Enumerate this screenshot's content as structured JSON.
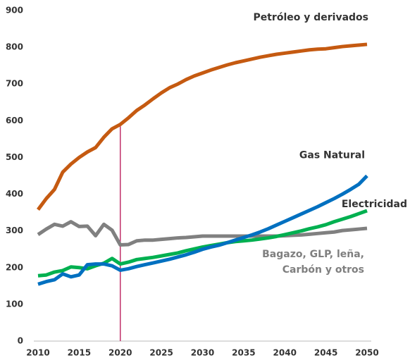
{
  "chart_data": {
    "type": "line",
    "x": [
      2010,
      2011,
      2012,
      2013,
      2014,
      2015,
      2016,
      2017,
      2018,
      2019,
      2020,
      2021,
      2022,
      2023,
      2024,
      2025,
      2026,
      2027,
      2028,
      2029,
      2030,
      2031,
      2032,
      2033,
      2034,
      2035,
      2036,
      2037,
      2038,
      2039,
      2040,
      2041,
      2042,
      2043,
      2044,
      2045,
      2046,
      2047,
      2048,
      2049,
      2050
    ],
    "series": [
      {
        "name": "Petróleo y derivados",
        "color": "#c55a11",
        "label_color": "#e8825a",
        "values": [
          358,
          388,
          413,
          460,
          482,
          500,
          515,
          527,
          555,
          578,
          590,
          608,
          628,
          643,
          660,
          676,
          690,
          700,
          712,
          722,
          730,
          738,
          745,
          752,
          758,
          763,
          768,
          773,
          777,
          781,
          784,
          787,
          790,
          793,
          795,
          796,
          799,
          802,
          804,
          806,
          808
        ]
      },
      {
        "name": "Gas Natural",
        "color": "#0070c0",
        "label_color": "#00a6e0",
        "values": [
          155,
          162,
          167,
          183,
          175,
          180,
          208,
          210,
          210,
          205,
          193,
          197,
          203,
          208,
          213,
          218,
          223,
          229,
          235,
          242,
          250,
          256,
          261,
          268,
          275,
          282,
          289,
          297,
          306,
          316,
          326,
          336,
          346,
          356,
          366,
          377,
          388,
          400,
          413,
          427,
          450
        ]
      },
      {
        "name": "Electricidad",
        "color": "#00b050",
        "label_color": "#00b050",
        "values": [
          178,
          180,
          188,
          192,
          202,
          200,
          197,
          205,
          212,
          225,
          210,
          215,
          222,
          225,
          228,
          232,
          236,
          240,
          246,
          251,
          256,
          260,
          264,
          268,
          271,
          273,
          275,
          278,
          281,
          285,
          290,
          295,
          300,
          306,
          311,
          317,
          325,
          332,
          339,
          347,
          355
        ]
      },
      {
        "name": "Bagazo, GLP, leña, Carbón y otros",
        "color": "#808080",
        "label_color": "#7f7f7f",
        "values": [
          290,
          305,
          318,
          313,
          325,
          312,
          313,
          287,
          318,
          302,
          262,
          263,
          273,
          275,
          275,
          277,
          279,
          281,
          282,
          284,
          286,
          286,
          286,
          286,
          286,
          286,
          286,
          286,
          286,
          286,
          287,
          288,
          289,
          291,
          293,
          295,
          297,
          301,
          303,
          305,
          307
        ]
      }
    ],
    "xlim": [
      2010,
      2050
    ],
    "xticks": [
      2010,
      2015,
      2020,
      2025,
      2030,
      2035,
      2040,
      2045,
      2050
    ],
    "ylim": [
      0,
      900
    ],
    "yticks": [
      0,
      100,
      200,
      300,
      400,
      500,
      600,
      700,
      800,
      900
    ],
    "marker_x": 2020,
    "marker_color": "#c0306a"
  }
}
